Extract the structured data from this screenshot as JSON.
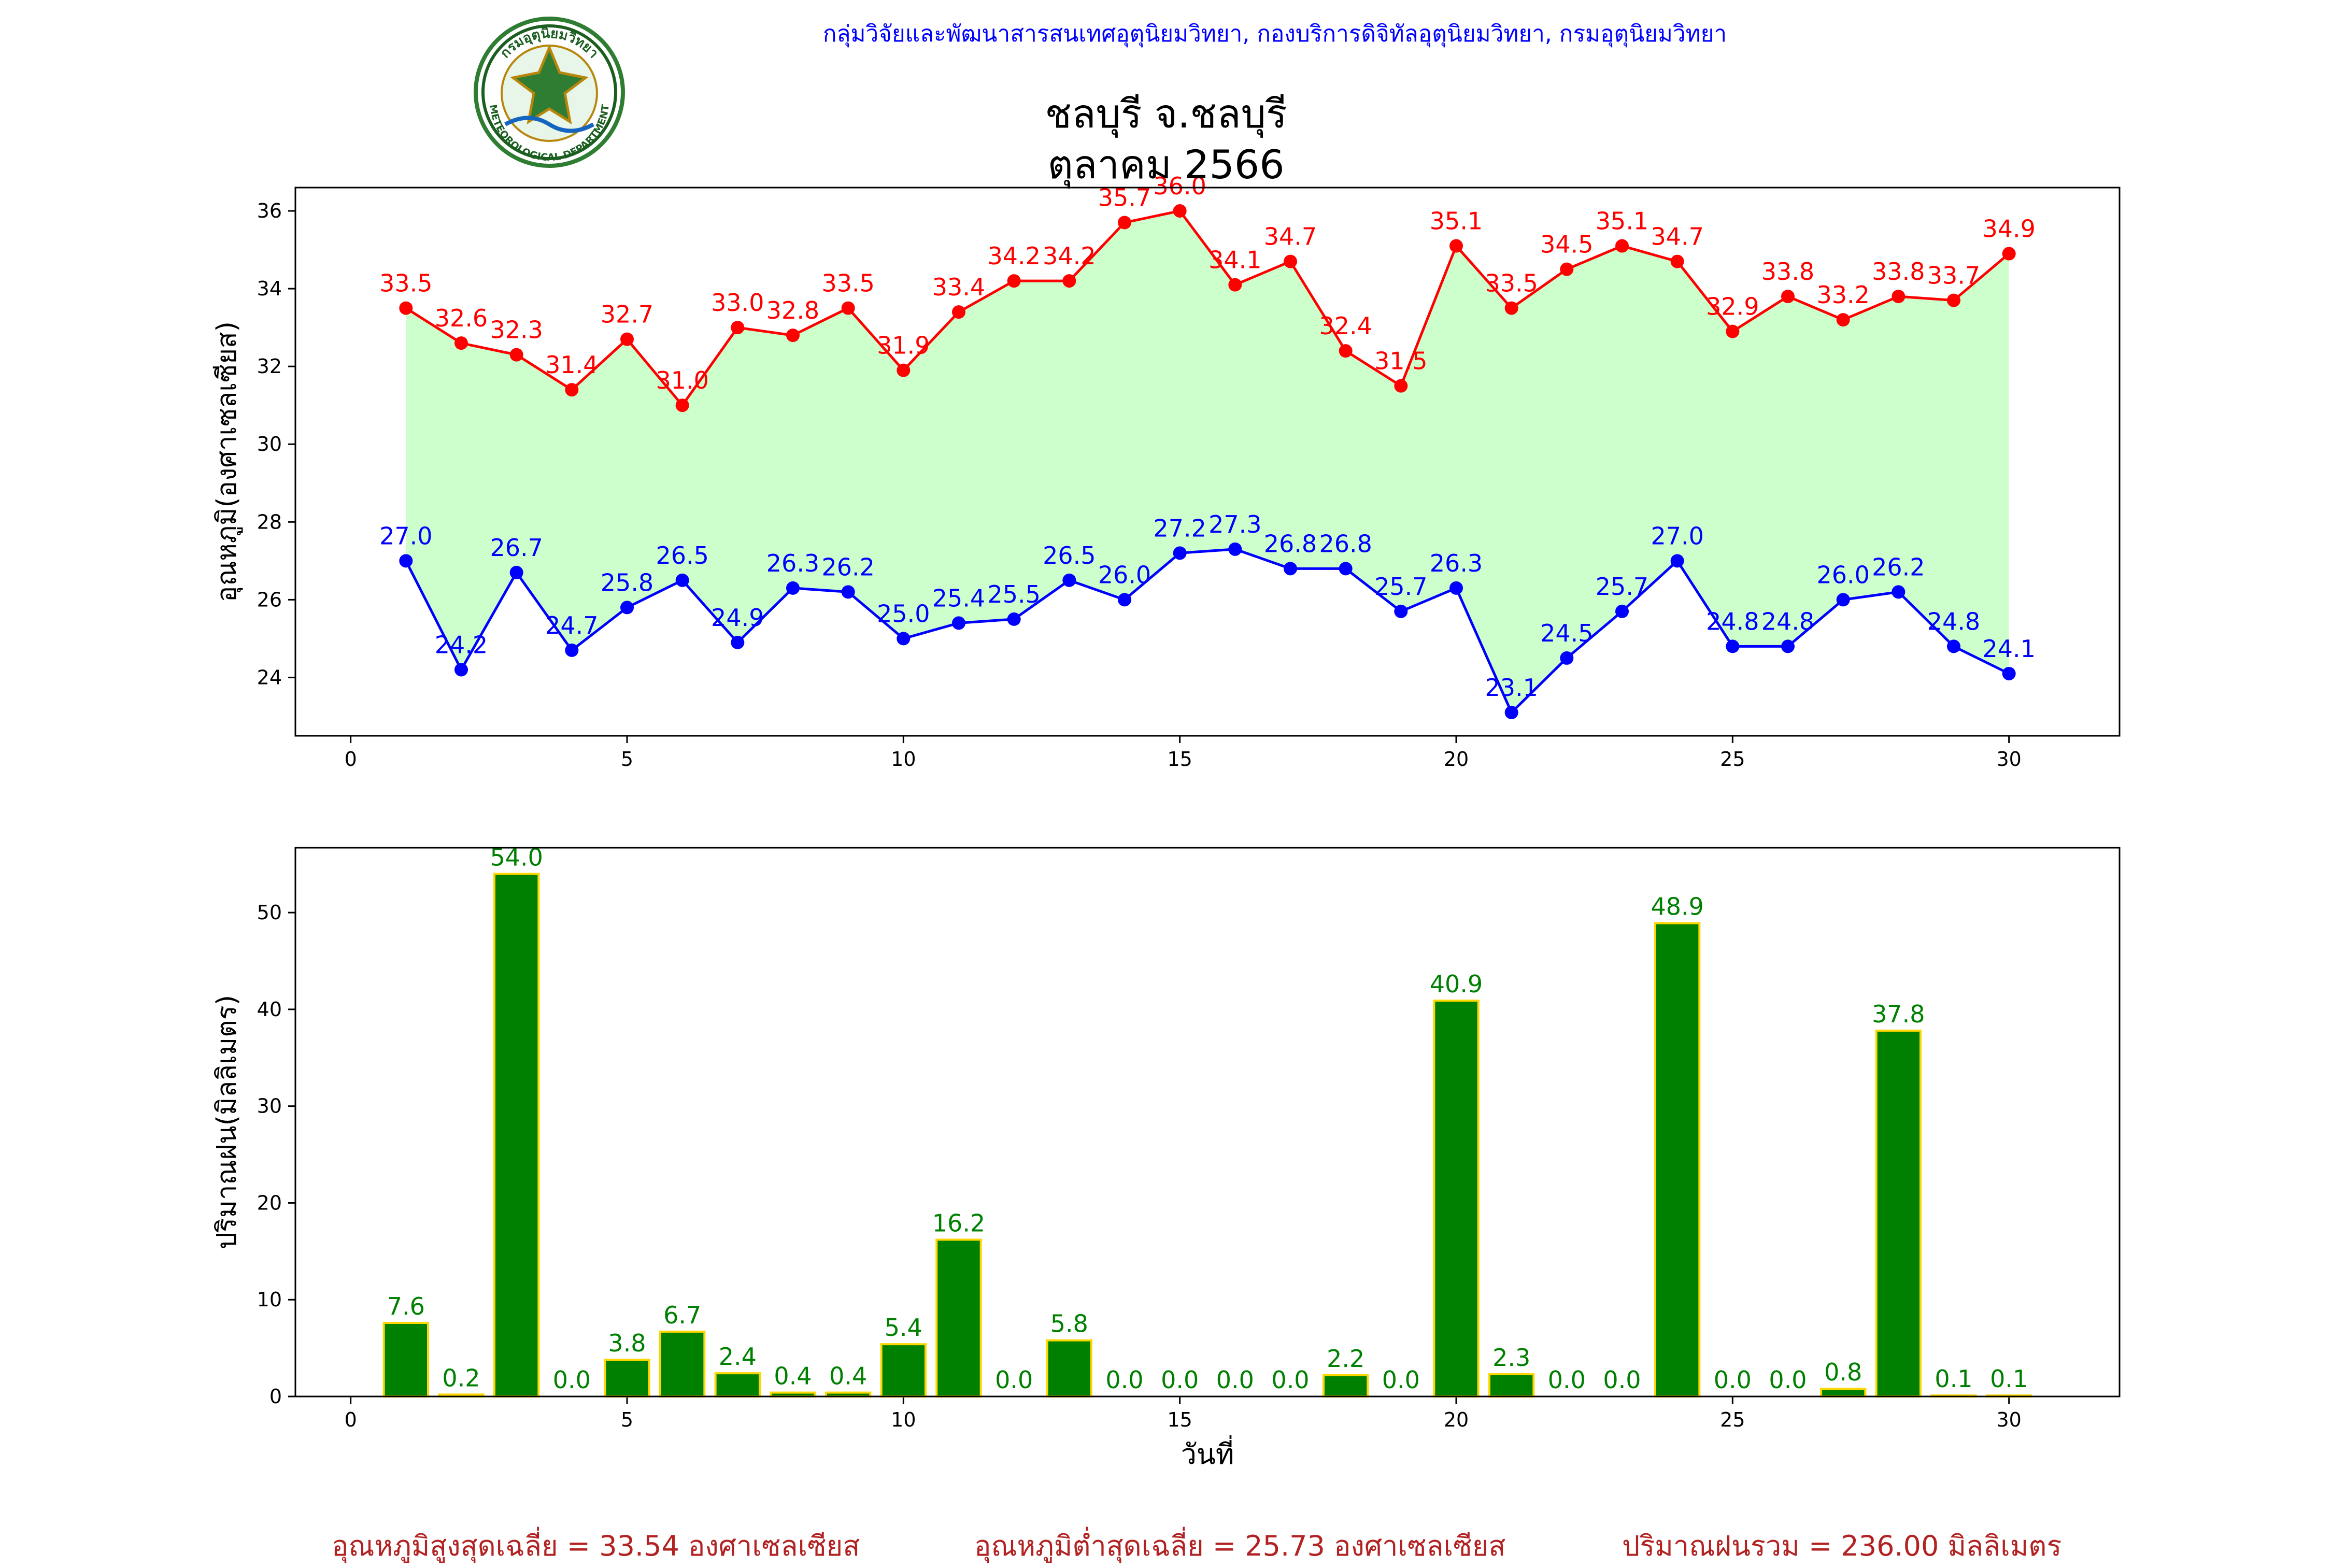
{
  "header": {
    "agency": "กลุ่มวิจัยและพัฒนาสารสนเทศอุตุนิยมวิทยา, กองบริการดิจิทัลอุตุนิยมวิทยา, กรมอุตุนิยมวิทยา",
    "logo_text_top": "กรมอุตุนิยมวิทยา",
    "logo_text_bottom": "METEOROLOGICAL DEPARTMENT",
    "title_line1": "ชลบุรี จ.ชลบุรี",
    "title_line2": "ตุลาคม 2566"
  },
  "colors": {
    "tmax": "#ff0000",
    "tmin": "#0000ff",
    "fill": "#ccffcc",
    "rain": "#008000",
    "rain_edge": "#ffd700",
    "footer": "#b22222"
  },
  "chart_data": [
    {
      "type": "line",
      "ylabel": "อุณหภูมิ(องศาเซลเซียส)",
      "xlim": [
        -1,
        32
      ],
      "ylim": [
        22.5,
        36.6
      ],
      "xticks": [
        0,
        5,
        10,
        15,
        20,
        25,
        30
      ],
      "yticks": [
        24,
        26,
        28,
        30,
        32,
        34,
        36
      ],
      "x": [
        1,
        2,
        3,
        4,
        5,
        6,
        7,
        8,
        9,
        10,
        11,
        12,
        13,
        14,
        15,
        16,
        17,
        18,
        19,
        20,
        21,
        22,
        23,
        24,
        25,
        26,
        27,
        28,
        29,
        30
      ],
      "series": [
        {
          "key": "tmax",
          "values": [
            33.5,
            32.6,
            32.3,
            31.4,
            32.7,
            31.0,
            33.0,
            32.8,
            33.5,
            31.9,
            33.4,
            34.2,
            34.2,
            35.7,
            36.0,
            34.1,
            34.7,
            32.4,
            31.5,
            35.1,
            33.5,
            34.5,
            35.1,
            34.7,
            32.9,
            33.8,
            33.2,
            33.8,
            33.7,
            34.9
          ]
        },
        {
          "key": "tmin",
          "values": [
            27.0,
            24.2,
            26.7,
            24.7,
            25.8,
            26.5,
            24.9,
            26.3,
            26.2,
            25.0,
            25.4,
            25.5,
            26.5,
            26.0,
            27.2,
            27.3,
            26.8,
            26.8,
            25.7,
            26.3,
            23.1,
            24.5,
            25.7,
            27.0,
            24.8,
            24.8,
            26.0,
            26.2,
            24.8,
            24.1
          ]
        }
      ]
    },
    {
      "type": "bar",
      "ylabel": "ปริมาณฝน(มิลลิเมตร)",
      "xlabel": "วันที่",
      "xlim": [
        -1,
        32
      ],
      "ylim": [
        0,
        56.7
      ],
      "xticks": [
        0,
        5,
        10,
        15,
        20,
        25,
        30
      ],
      "yticks": [
        0,
        10,
        20,
        30,
        40,
        50
      ],
      "x": [
        1,
        2,
        3,
        4,
        5,
        6,
        7,
        8,
        9,
        10,
        11,
        12,
        13,
        14,
        15,
        16,
        17,
        18,
        19,
        20,
        21,
        22,
        23,
        24,
        25,
        26,
        27,
        28,
        29,
        30
      ],
      "values": [
        7.6,
        0.2,
        54.0,
        0.0,
        3.8,
        6.7,
        2.4,
        0.4,
        0.4,
        5.4,
        16.2,
        0.0,
        5.8,
        0.0,
        0.0,
        0.0,
        0.0,
        2.2,
        0.0,
        40.9,
        2.3,
        0.0,
        0.0,
        48.9,
        0.0,
        0.0,
        0.8,
        37.8,
        0.1,
        0.1
      ]
    }
  ],
  "footer": {
    "avg_max": "อุณหภูมิสูงสุดเฉลี่ย = 33.54 องศาเซลเซียส",
    "avg_min": "อุณหภูมิต่ำสุดเฉลี่ย = 25.73 องศาเซลเซียส",
    "total_rain": "ปริมาณฝนรวม = 236.00 มิลลิเมตร"
  }
}
